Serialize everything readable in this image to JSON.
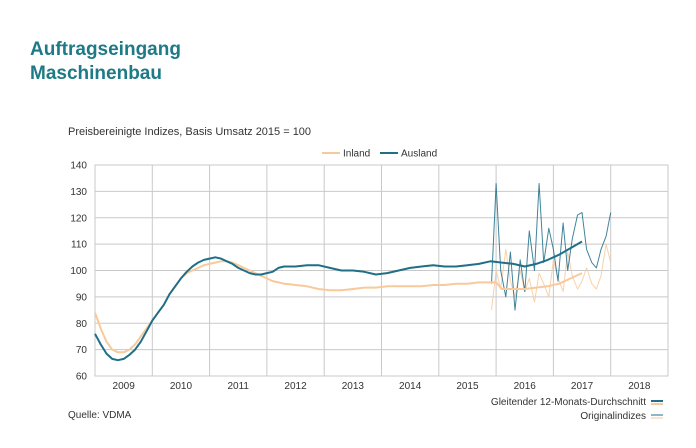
{
  "title_line1": "Auftragseingang",
  "title_line2": "Maschinenbau",
  "source": "Quelle: VDMA",
  "colors": {
    "title": "#1e7a86",
    "inland": "#f8c99a",
    "ausland": "#1f6f88",
    "grid": "#c9c9c9"
  },
  "chart_data": {
    "type": "line",
    "title": "",
    "subtitle": "Preisbereinigte Indizes, Basis Umsatz 2015 = 100",
    "xlabel": "",
    "ylabel": "",
    "ylim": [
      60,
      140
    ],
    "yticks": [
      60,
      70,
      80,
      90,
      100,
      110,
      120,
      130,
      140
    ],
    "xlim": [
      2008.5,
      2018.5
    ],
    "xtick_labels": [
      "2009",
      "2010",
      "2011",
      "2012",
      "2013",
      "2014",
      "2015",
      "2016",
      "2017",
      "2018"
    ],
    "grid": true,
    "legend_top": [
      "Inland",
      "Ausland"
    ],
    "legend_bottom": [
      "Gleitender 12-Monats-Durchschnitt",
      "Originalindizes"
    ],
    "series": [
      {
        "name": "Inland",
        "style": "12-month moving average",
        "x": [
          2008.5,
          2008.6,
          2008.7,
          2008.8,
          2008.9,
          2009.0,
          2009.1,
          2009.2,
          2009.3,
          2009.4,
          2009.5,
          2009.6,
          2009.7,
          2009.8,
          2009.9,
          2010.0,
          2010.1,
          2010.2,
          2010.3,
          2010.4,
          2010.5,
          2010.6,
          2010.7,
          2010.8,
          2010.9,
          2011.0,
          2011.1,
          2011.2,
          2011.3,
          2011.4,
          2011.5,
          2011.6,
          2011.7,
          2011.8,
          2011.9,
          2012.0,
          2012.2,
          2012.4,
          2012.6,
          2012.8,
          2013.0,
          2013.2,
          2013.4,
          2013.6,
          2013.8,
          2014.0,
          2014.2,
          2014.4,
          2014.6,
          2014.8,
          2015.0,
          2015.2,
          2015.4,
          2015.5,
          2015.6,
          2015.8,
          2016.0,
          2016.2,
          2016.4,
          2016.6,
          2016.8,
          2017.0
        ],
        "values": [
          84,
          78,
          73,
          70,
          69,
          69,
          70,
          72,
          75,
          78,
          81,
          84,
          87,
          91,
          94,
          97,
          99,
          100,
          101,
          102,
          102.5,
          103,
          103.5,
          103.5,
          103,
          102,
          101,
          100,
          99,
          98,
          97,
          96,
          95.5,
          95,
          94.8,
          94.5,
          94,
          93,
          92.5,
          92.5,
          93,
          93.5,
          93.5,
          94,
          94,
          94,
          94,
          94.5,
          94.5,
          95,
          95,
          95.5,
          95.5,
          95.5,
          93,
          93,
          93,
          93.5,
          94,
          95,
          97,
          99
        ]
      },
      {
        "name": "Ausland",
        "style": "12-month moving average",
        "x": [
          2008.5,
          2008.6,
          2008.7,
          2008.8,
          2008.9,
          2009.0,
          2009.1,
          2009.2,
          2009.3,
          2009.4,
          2009.5,
          2009.6,
          2009.7,
          2009.8,
          2009.9,
          2010.0,
          2010.1,
          2010.2,
          2010.3,
          2010.4,
          2010.5,
          2010.6,
          2010.7,
          2010.8,
          2010.9,
          2011.0,
          2011.1,
          2011.2,
          2011.3,
          2011.4,
          2011.5,
          2011.6,
          2011.7,
          2011.8,
          2011.9,
          2012.0,
          2012.2,
          2012.4,
          2012.6,
          2012.8,
          2013.0,
          2013.2,
          2013.4,
          2013.6,
          2013.8,
          2014.0,
          2014.2,
          2014.4,
          2014.6,
          2014.8,
          2015.0,
          2015.2,
          2015.4,
          2015.6,
          2015.8,
          2016.0,
          2016.2,
          2016.4,
          2016.6,
          2016.8,
          2017.0
        ],
        "values": [
          76,
          72,
          68.5,
          66.5,
          66,
          66.5,
          68,
          70,
          73,
          77,
          81,
          84,
          87,
          91,
          94,
          97,
          99.5,
          101.5,
          103,
          104,
          104.5,
          105,
          104.5,
          103.5,
          102.5,
          101,
          100,
          99,
          98.5,
          98.5,
          99,
          99.5,
          101,
          101.5,
          101.5,
          101.5,
          102,
          102,
          101,
          100,
          100,
          99.5,
          98.5,
          99,
          100,
          101,
          101.5,
          102,
          101.5,
          101.5,
          102,
          102.5,
          103.5,
          103,
          102.5,
          101.5,
          102.5,
          104,
          106,
          108.5,
          111
        ]
      },
      {
        "name": "Inland",
        "style": "Originalindizes",
        "x": [
          2015.42,
          2015.5,
          2015.58,
          2015.67,
          2015.75,
          2015.83,
          2015.92,
          2016.0,
          2016.08,
          2016.17,
          2016.25,
          2016.33,
          2016.42,
          2016.5,
          2016.58,
          2016.67,
          2016.75,
          2016.83,
          2016.92,
          2017.0,
          2017.08,
          2017.17,
          2017.25,
          2017.33,
          2017.42,
          2017.5
        ],
        "values": [
          85,
          100,
          93,
          108,
          96,
          90,
          100,
          92,
          97,
          88,
          99,
          95,
          90,
          104,
          97,
          92,
          107,
          98,
          93,
          96,
          101,
          95,
          93,
          98,
          110,
          103
        ]
      },
      {
        "name": "Ausland",
        "style": "Originalindizes",
        "x": [
          2015.42,
          2015.5,
          2015.58,
          2015.67,
          2015.75,
          2015.83,
          2015.92,
          2016.0,
          2016.08,
          2016.17,
          2016.25,
          2016.33,
          2016.42,
          2016.5,
          2016.58,
          2016.67,
          2016.75,
          2016.83,
          2016.92,
          2017.0,
          2017.08,
          2017.17,
          2017.25,
          2017.33,
          2017.42,
          2017.5
        ],
        "values": [
          95,
          133,
          100,
          90,
          107,
          85,
          104,
          92,
          115,
          100,
          133,
          103,
          116,
          108,
          96,
          118,
          100,
          112,
          121,
          122,
          108,
          103,
          101,
          108,
          113,
          122
        ]
      }
    ]
  }
}
